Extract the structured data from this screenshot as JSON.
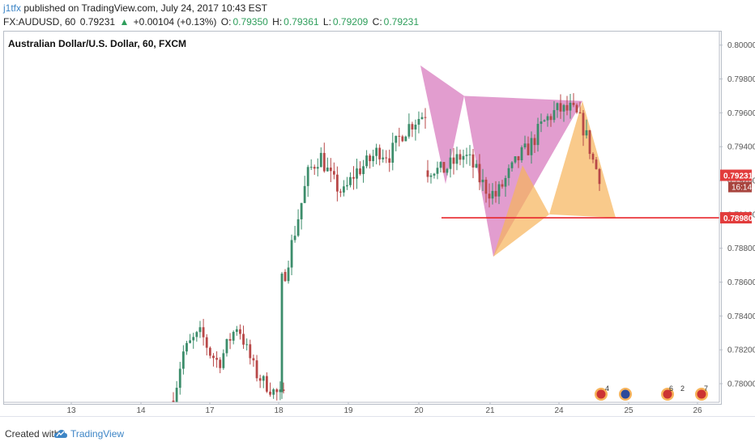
{
  "header": {
    "user": "j1tfx",
    "published": "published on TradingView.com, July 24, 2017 10:43 EST",
    "symbol": "FX:AUDUSD, 60",
    "last": "0.79231",
    "change": "+0.00104 (+0.13%)",
    "open_label": "O:",
    "open": "0.79350",
    "high_label": "H:",
    "high": "0.79361",
    "low_label": "L:",
    "low": "0.79209",
    "close_label": "C:",
    "close": "0.79231"
  },
  "chart_data": {
    "type": "candlestick",
    "title": "Australian Dollar/U.S. Dollar, 60, FXCM",
    "x_tick_labels": [
      "13",
      "14",
      "17",
      "18",
      "19",
      "20",
      "21",
      "24",
      "25",
      "26"
    ],
    "y_tick_labels": [
      "0.80000",
      "0.79800",
      "0.79600",
      "0.79400",
      "0.79200",
      "0.79000",
      "0.78800",
      "0.78600",
      "0.78400",
      "0.78200",
      "0.78000"
    ],
    "ylim": [
      0.7789,
      0.8008
    ],
    "price_tag": "0.79231",
    "time_tag": "16:14",
    "level_tag": "0.78980",
    "horizontal_level": 0.7898,
    "path_a": [
      0.7926,
      0.7928,
      0.7925,
      0.7927,
      0.7929,
      0.7932,
      0.7935,
      0.7933,
      0.7928,
      0.7921,
      0.7916,
      0.7913,
      0.7911,
      0.7917,
      0.7923,
      0.7928,
      0.7934
    ],
    "path_b": [
      0.7934,
      0.7937,
      0.7941,
      0.7947,
      0.7953,
      0.7957,
      0.796,
      0.7962,
      0.7961,
      0.7962,
      0.7958,
      0.7953,
      0.7943,
      0.793,
      0.7923
    ],
    "colors": {
      "up": "#3c8d6b",
      "down": "#b84848",
      "pattern_pink": "#d87cbf",
      "pattern_orange": "#f7b35a",
      "level": "#e8262b",
      "tag_red": "#e23c3c"
    },
    "event_badges": [
      "4",
      "6",
      "2",
      "7"
    ],
    "grid": false
  },
  "footer": {
    "created": "Created with",
    "brand": "TradingView"
  }
}
